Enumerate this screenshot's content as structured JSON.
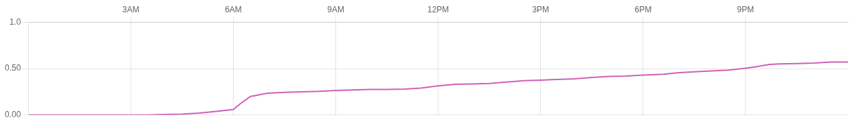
{
  "chart_data": {
    "type": "line",
    "x": [
      0,
      0.5,
      1.0,
      1.5,
      2.0,
      2.5,
      3.0,
      3.5,
      4.0,
      4.5,
      5.0,
      5.5,
      6.0,
      6.2,
      6.5,
      7.0,
      7.5,
      8.0,
      8.5,
      9.0,
      9.5,
      10.0,
      10.5,
      11.0,
      11.5,
      12.0,
      12.5,
      13.0,
      13.5,
      14.0,
      14.5,
      15.0,
      15.3,
      15.6,
      16.0,
      16.5,
      17.0,
      17.5,
      18.0,
      18.3,
      18.6,
      19.0,
      19.5,
      20.0,
      20.5,
      21.0,
      21.3,
      21.7,
      22.0,
      22.5,
      23.0,
      23.5,
      24.0
    ],
    "values": [
      0.0,
      0.0,
      0.0,
      0.0,
      0.0,
      0.0,
      0.0,
      0.0,
      0.005,
      0.01,
      0.02,
      0.04,
      0.06,
      0.12,
      0.2,
      0.235,
      0.245,
      0.25,
      0.255,
      0.265,
      0.27,
      0.275,
      0.275,
      0.28,
      0.29,
      0.315,
      0.33,
      0.335,
      0.34,
      0.355,
      0.37,
      0.375,
      0.38,
      0.385,
      0.39,
      0.405,
      0.415,
      0.42,
      0.43,
      0.435,
      0.44,
      0.455,
      0.465,
      0.475,
      0.485,
      0.505,
      0.52,
      0.545,
      0.55,
      0.555,
      0.56,
      0.57,
      0.57
    ],
    "color": "#d060b8",
    "xlim": [
      0,
      24
    ],
    "xticks": [
      {
        "value": 3,
        "label": "3AM"
      },
      {
        "value": 6,
        "label": "6AM"
      },
      {
        "value": 9,
        "label": "9AM"
      },
      {
        "value": 12,
        "label": "12PM"
      },
      {
        "value": 15,
        "label": "3PM"
      },
      {
        "value": 18,
        "label": "6PM"
      },
      {
        "value": 21,
        "label": "9PM"
      }
    ],
    "ylim": [
      0.0,
      1.0
    ],
    "yticks": [
      {
        "value": 0.0,
        "label": "0.00"
      },
      {
        "value": 0.5,
        "label": "0.50"
      },
      {
        "value": 1.0,
        "label": "1.0"
      }
    ],
    "grid": true
  }
}
